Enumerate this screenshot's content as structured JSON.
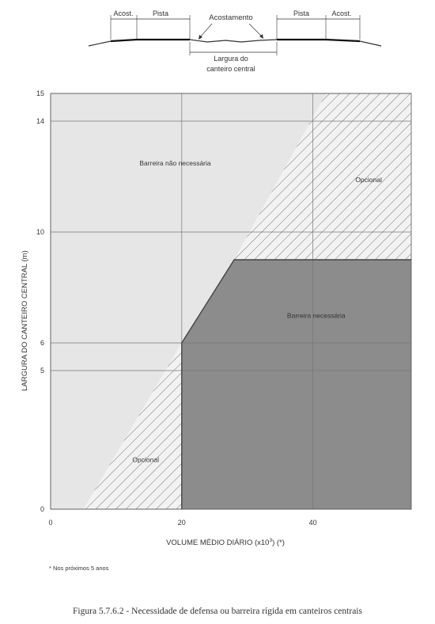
{
  "cross_section": {
    "acost_left": "Acost.",
    "pista_left": "Pista",
    "acostamento": "Acostamento",
    "pista_right": "Pista",
    "acost_right": "Acost.",
    "largura_line1": "Largura do",
    "largura_line2": "canteiro central"
  },
  "chart_data": {
    "type": "area",
    "xlabel_prefix": "VOLUME MÉDIO DIÁRIO (x10",
    "xlabel_sup": "3",
    "xlabel_suffix": ") (*)",
    "ylabel": "LARGURA DO CANTEIRO CENTRAL (m)",
    "x_ticks": [
      "0",
      "20",
      "40"
    ],
    "x_tick_values": [
      0,
      20,
      40
    ],
    "y_ticks": [
      "0",
      "5",
      "6",
      "10",
      "14",
      "15"
    ],
    "y_tick_values": [
      0,
      5,
      6,
      10,
      14,
      15
    ],
    "xlim": [
      0,
      55
    ],
    "ylim": [
      0,
      15
    ],
    "grid": true,
    "regions": [
      {
        "name": "Barreira não necessária",
        "fill": "#e6e6e6",
        "points": [
          [
            0,
            0
          ],
          [
            5,
            0
          ],
          [
            20,
            6
          ],
          [
            28,
            9
          ],
          [
            42,
            15
          ],
          [
            0,
            15
          ]
        ]
      },
      {
        "name": "Opcional",
        "fill": "hatch",
        "points": [
          [
            5,
            0
          ],
          [
            20,
            0
          ],
          [
            20,
            6
          ]
        ]
      },
      {
        "name": "Opcional",
        "fill": "hatch",
        "points": [
          [
            42,
            15
          ],
          [
            55,
            15
          ],
          [
            55,
            9
          ],
          [
            28,
            9
          ]
        ]
      },
      {
        "name": "Barreira necessária",
        "fill": "#8c8c8c",
        "points": [
          [
            20,
            0
          ],
          [
            55,
            0
          ],
          [
            55,
            9
          ],
          [
            28,
            9
          ],
          [
            20,
            6
          ]
        ]
      }
    ],
    "labels": [
      {
        "text": "Barreira não necessária",
        "x": 19,
        "y": 12.4
      },
      {
        "text": "Opcional",
        "x": 48.5,
        "y": 11.8
      },
      {
        "text": "Barreira necessária",
        "x": 40.5,
        "y": 6.9
      },
      {
        "text": "Opcional",
        "x": 14.5,
        "y": 1.7
      }
    ]
  },
  "footnote": "* Nos próximos 5 anos",
  "caption": "Figura 5.7.6.2 - Necessidade de defensa ou barreira rígida em canteiros centrais",
  "colors": {
    "chart_bg": "#e6e6e6",
    "needed": "#8c8c8c",
    "hatch": "#555555",
    "grid": "#777777"
  }
}
